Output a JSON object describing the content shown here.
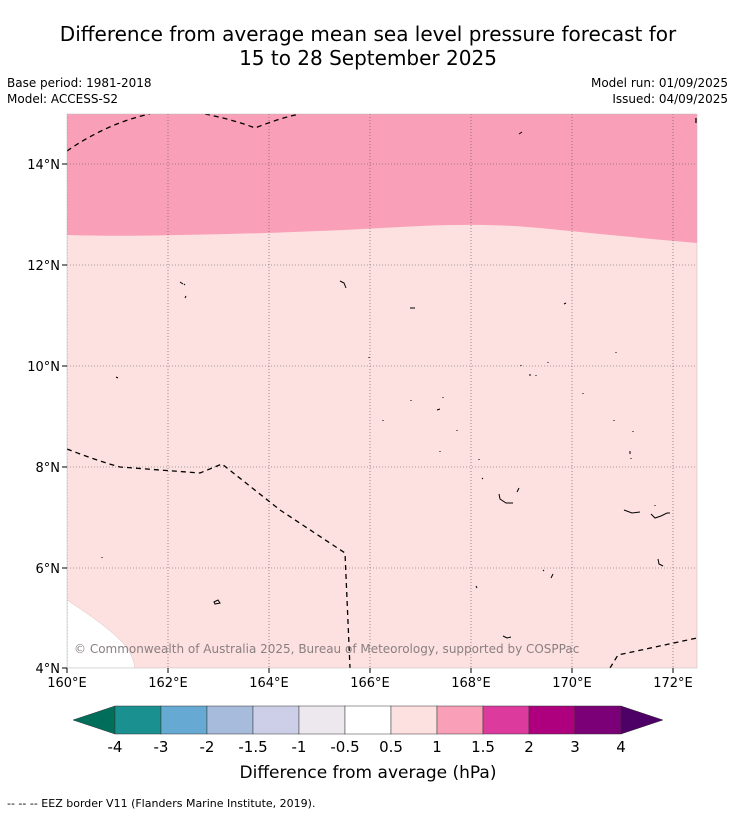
{
  "title_line1": "Difference from average mean sea level pressure forecast for",
  "title_line2": "15 to 28 September 2025",
  "base_period": "Base period: 1981-2018",
  "model": "Model: ACCESS-S2",
  "model_run": "Model run: 01/09/2025",
  "issued": "Issued: 04/09/2025",
  "lat_ticks": [
    "14°N",
    "12°N",
    "10°N",
    "8°N",
    "6°N",
    "4°N"
  ],
  "lon_ticks": [
    "160°E",
    "162°E",
    "164°E",
    "166°E",
    "168°E",
    "170°E",
    "172°E"
  ],
  "copyright": "© Commonwealth of Australia 2025, Bureau of Meteorology, supported by COSPPac",
  "colorbar": {
    "title": "Difference from average (hPa)",
    "labels": [
      "-4",
      "-3",
      "-2",
      "-1.5",
      "-1",
      "-0.5",
      "0.5",
      "1",
      "1.5",
      "2",
      "3",
      "4"
    ],
    "colors": [
      "#006e5a",
      "#1a9090",
      "#66aad4",
      "#a7bcdd",
      "#cdcfe8",
      "#ede8ee",
      "#ffffff",
      "#fde0e0",
      "#f99fb7",
      "#dd3a9e",
      "#ae007e",
      "#7b0078",
      "#4d0066"
    ]
  },
  "legend_footer": "--  --  -- EEZ border V11 (Flanders Marine Institute, 2019).",
  "map_colors": {
    "band_0_5_to_1": "#fde0e0",
    "band_1_to_1_5": "#f99fb7",
    "below_0_5": "#ffffff"
  }
}
